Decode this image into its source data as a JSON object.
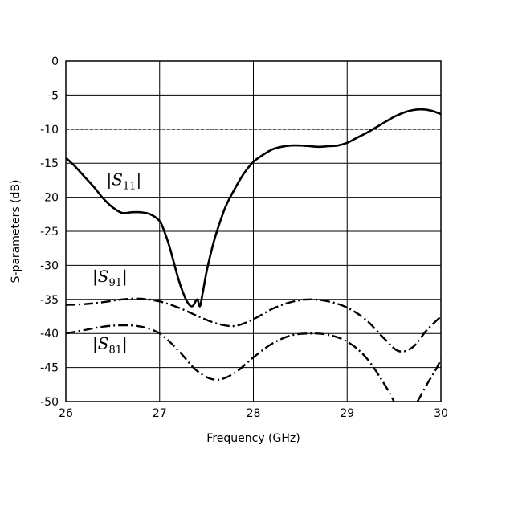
{
  "chart_data": {
    "type": "line",
    "title": "",
    "xlabel": "Frequency (GHz)",
    "ylabel": "S-parameters (dB)",
    "xlim": [
      26,
      30
    ],
    "ylim": [
      -50,
      0
    ],
    "x_ticks": [
      "26",
      "27",
      "28",
      "29",
      "30"
    ],
    "y_ticks": [
      "0",
      "-5",
      "-10",
      "-15",
      "-20",
      "-25",
      "-30",
      "-35",
      "-40",
      "-45",
      "-50"
    ],
    "grid": true,
    "reference_line": {
      "y": -10,
      "style": "dashed"
    },
    "series": [
      {
        "name": "|S11|",
        "style": "solid",
        "x": [
          26.0,
          26.1,
          26.2,
          26.3,
          26.4,
          26.5,
          26.6,
          26.7,
          26.8,
          26.9,
          27.0,
          27.05,
          27.1,
          27.15,
          27.2,
          27.25,
          27.3,
          27.35,
          27.4,
          27.43,
          27.46,
          27.5,
          27.55,
          27.6,
          27.7,
          27.8,
          27.9,
          28.0,
          28.1,
          28.2,
          28.3,
          28.4,
          28.5,
          28.6,
          28.7,
          28.8,
          28.9,
          29.0,
          29.1,
          29.2,
          29.3,
          29.4,
          29.5,
          29.6,
          29.7,
          29.8,
          29.9,
          30.0
        ],
        "values": [
          -14.2,
          -15.5,
          -17.0,
          -18.5,
          -20.2,
          -21.5,
          -22.3,
          -22.2,
          -22.2,
          -22.5,
          -23.5,
          -25.0,
          -27.0,
          -29.5,
          -32.0,
          -34.0,
          -35.5,
          -36.0,
          -35.0,
          -36.0,
          -34.0,
          -31.0,
          -28.0,
          -25.5,
          -21.5,
          -18.8,
          -16.5,
          -14.8,
          -13.8,
          -13.0,
          -12.6,
          -12.4,
          -12.4,
          -12.5,
          -12.6,
          -12.5,
          -12.4,
          -12.0,
          -11.3,
          -10.6,
          -9.8,
          -9.0,
          -8.2,
          -7.6,
          -7.2,
          -7.1,
          -7.3,
          -7.8
        ]
      },
      {
        "name": "|S91|",
        "style": "dash-dot",
        "x": [
          26.0,
          26.2,
          26.4,
          26.6,
          26.8,
          27.0,
          27.2,
          27.4,
          27.6,
          27.8,
          28.0,
          28.2,
          28.4,
          28.6,
          28.8,
          29.0,
          29.2,
          29.4,
          29.55,
          29.7,
          29.85,
          30.0
        ],
        "values": [
          -35.8,
          -35.7,
          -35.4,
          -35.0,
          -34.9,
          -35.3,
          -36.2,
          -37.4,
          -38.5,
          -38.9,
          -37.9,
          -36.4,
          -35.4,
          -35.0,
          -35.3,
          -36.2,
          -38.0,
          -40.8,
          -42.6,
          -42.0,
          -39.5,
          -37.5
        ]
      },
      {
        "name": "|S81|",
        "style": "dash-dot",
        "x": [
          26.0,
          26.2,
          26.4,
          26.6,
          26.8,
          27.0,
          27.2,
          27.4,
          27.6,
          27.8,
          28.0,
          28.2,
          28.4,
          28.6,
          28.8,
          29.0,
          29.2,
          29.4,
          29.5
        ],
        "values": [
          -40.0,
          -39.5,
          -39.0,
          -38.8,
          -39.0,
          -40.0,
          -42.5,
          -45.5,
          -46.8,
          -45.8,
          -43.5,
          -41.5,
          -40.3,
          -40.0,
          -40.2,
          -41.2,
          -43.5,
          -47.5,
          -50.0
        ]
      },
      {
        "name": "",
        "style": "dash-dot",
        "x": [
          29.75,
          29.85,
          29.95,
          30.0
        ],
        "values": [
          -50.0,
          -47.5,
          -45.2,
          -43.8
        ]
      }
    ],
    "annotations": [
      {
        "series": "|S11|",
        "text": "|S11|",
        "x": 26.62,
        "y": -18.2
      },
      {
        "series": "|S91|",
        "text": "|S91|",
        "x": 26.47,
        "y": -32.4
      },
      {
        "series": "|S81|",
        "text": "|S81|",
        "x": 26.47,
        "y": -42.3
      }
    ]
  }
}
